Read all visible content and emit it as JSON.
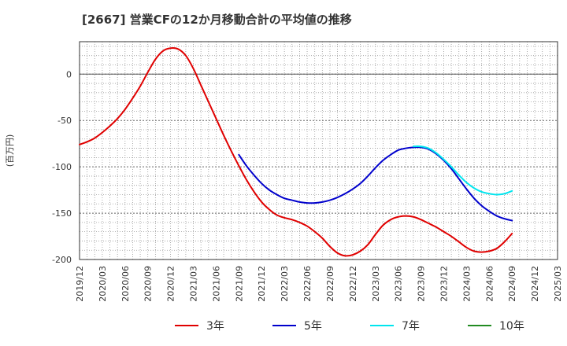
{
  "title": "[2667]  営業CFの12か月移動合計の平均値の推移",
  "chart_data": {
    "type": "line",
    "ylabel": "(百万円)",
    "xlim": [
      "2019/12",
      "2025/03"
    ],
    "ylim": [
      -200,
      35
    ],
    "y_ticks": [
      0,
      -50,
      -100,
      -150,
      -200
    ],
    "x_ticks": [
      "2019/12",
      "2020/03",
      "2020/06",
      "2020/09",
      "2020/12",
      "2021/03",
      "2021/06",
      "2021/09",
      "2021/12",
      "2022/03",
      "2022/06",
      "2022/09",
      "2022/12",
      "2023/03",
      "2023/06",
      "2023/09",
      "2023/12",
      "2024/03",
      "2024/06",
      "2024/09",
      "2024/12",
      "2025/03"
    ],
    "grid": true,
    "legend_position": "bottom",
    "series": [
      {
        "name": "3年",
        "color": "#e00000",
        "points": [
          [
            "2019/12",
            -76
          ],
          [
            "2020/01",
            -73
          ],
          [
            "2020/02",
            -69
          ],
          [
            "2020/03",
            -63
          ],
          [
            "2020/04",
            -56
          ],
          [
            "2020/05",
            -48
          ],
          [
            "2020/06",
            -38
          ],
          [
            "2020/07",
            -26
          ],
          [
            "2020/08",
            -13
          ],
          [
            "2020/09",
            2
          ],
          [
            "2020/10",
            16
          ],
          [
            "2020/11",
            25
          ],
          [
            "2020/12",
            28
          ],
          [
            "2021/01",
            27
          ],
          [
            "2021/02",
            20
          ],
          [
            "2021/03",
            6
          ],
          [
            "2021/04",
            -12
          ],
          [
            "2021/05",
            -30
          ],
          [
            "2021/06",
            -48
          ],
          [
            "2021/07",
            -66
          ],
          [
            "2021/08",
            -83
          ],
          [
            "2021/09",
            -99
          ],
          [
            "2021/10",
            -114
          ],
          [
            "2021/11",
            -127
          ],
          [
            "2021/12",
            -138
          ],
          [
            "2022/01",
            -146
          ],
          [
            "2022/02",
            -152
          ],
          [
            "2022/03",
            -155
          ],
          [
            "2022/04",
            -157
          ],
          [
            "2022/05",
            -160
          ],
          [
            "2022/06",
            -164
          ],
          [
            "2022/07",
            -170
          ],
          [
            "2022/08",
            -177
          ],
          [
            "2022/09",
            -186
          ],
          [
            "2022/10",
            -193
          ],
          [
            "2022/11",
            -196
          ],
          [
            "2022/12",
            -195
          ],
          [
            "2023/01",
            -191
          ],
          [
            "2023/02",
            -184
          ],
          [
            "2023/03",
            -173
          ],
          [
            "2023/04",
            -163
          ],
          [
            "2023/05",
            -157
          ],
          [
            "2023/06",
            -154
          ],
          [
            "2023/07",
            -153
          ],
          [
            "2023/08",
            -154
          ],
          [
            "2023/09",
            -157
          ],
          [
            "2023/10",
            -161
          ],
          [
            "2023/11",
            -165
          ],
          [
            "2023/12",
            -170
          ],
          [
            "2024/01",
            -175
          ],
          [
            "2024/02",
            -181
          ],
          [
            "2024/03",
            -187
          ],
          [
            "2024/04",
            -191
          ],
          [
            "2024/05",
            -192
          ],
          [
            "2024/06",
            -191
          ],
          [
            "2024/07",
            -188
          ],
          [
            "2024/08",
            -181
          ],
          [
            "2024/09",
            -172
          ]
        ]
      },
      {
        "name": "5年",
        "color": "#0000cc",
        "points": [
          [
            "2021/09",
            -87
          ],
          [
            "2021/10",
            -99
          ],
          [
            "2021/11",
            -109
          ],
          [
            "2021/12",
            -118
          ],
          [
            "2022/01",
            -125
          ],
          [
            "2022/02",
            -130
          ],
          [
            "2022/03",
            -134
          ],
          [
            "2022/04",
            -136
          ],
          [
            "2022/05",
            -138
          ],
          [
            "2022/06",
            -139
          ],
          [
            "2022/07",
            -139
          ],
          [
            "2022/08",
            -138
          ],
          [
            "2022/09",
            -136
          ],
          [
            "2022/10",
            -133
          ],
          [
            "2022/11",
            -129
          ],
          [
            "2022/12",
            -124
          ],
          [
            "2023/01",
            -118
          ],
          [
            "2023/02",
            -110
          ],
          [
            "2023/03",
            -101
          ],
          [
            "2023/04",
            -93
          ],
          [
            "2023/05",
            -87
          ],
          [
            "2023/06",
            -82
          ],
          [
            "2023/07",
            -80
          ],
          [
            "2023/08",
            -79
          ],
          [
            "2023/09",
            -79
          ],
          [
            "2023/10",
            -81
          ],
          [
            "2023/11",
            -86
          ],
          [
            "2023/12",
            -93
          ],
          [
            "2024/01",
            -102
          ],
          [
            "2024/02",
            -113
          ],
          [
            "2024/03",
            -124
          ],
          [
            "2024/04",
            -134
          ],
          [
            "2024/05",
            -142
          ],
          [
            "2024/06",
            -148
          ],
          [
            "2024/07",
            -153
          ],
          [
            "2024/08",
            -156
          ],
          [
            "2024/09",
            -158
          ]
        ]
      },
      {
        "name": "7年",
        "color": "#00e5ee",
        "points": [
          [
            "2023/08",
            -78
          ],
          [
            "2023/09",
            -78
          ],
          [
            "2023/10",
            -80
          ],
          [
            "2023/11",
            -85
          ],
          [
            "2023/12",
            -92
          ],
          [
            "2024/01",
            -100
          ],
          [
            "2024/02",
            -109
          ],
          [
            "2024/03",
            -117
          ],
          [
            "2024/04",
            -123
          ],
          [
            "2024/05",
            -127
          ],
          [
            "2024/06",
            -129
          ],
          [
            "2024/07",
            -130
          ],
          [
            "2024/08",
            -129
          ],
          [
            "2024/09",
            -126
          ]
        ]
      },
      {
        "name": "10年",
        "color": "#228b22",
        "points": []
      }
    ]
  }
}
